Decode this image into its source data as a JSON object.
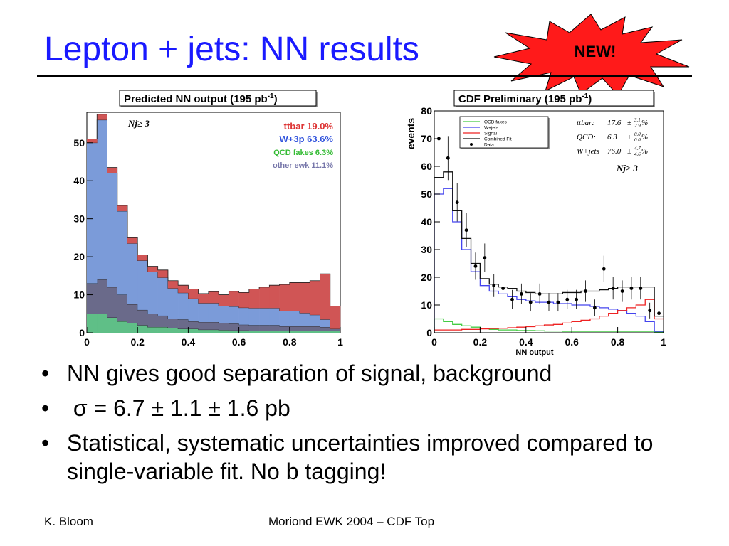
{
  "slide": {
    "title": "Lepton + jets: NN results",
    "badge": "NEW!",
    "bullet_marker": "•",
    "bullets": [
      "NN gives good separation of signal, background",
      " σ = 6.7 ± 1.1 ± 1.6 pb",
      "Statistical, systematic uncertainties improved compared to single-variable fit.  No b tagging!"
    ],
    "footer_left": "K. Bloom",
    "footer_center": "Moriond EWK 2004 – CDF Top",
    "colors": {
      "title": "#1a1aff",
      "badge_fill": "#ff1a1a",
      "rule": "#000000"
    }
  },
  "chart_data": [
    {
      "type": "area",
      "stacked": true,
      "title_main": "Predicted NN output (195 pb",
      "title_sup": "-1",
      "title_end": ")",
      "annotation": "Nj≥ 3",
      "x_ticks": [
        "0",
        "0.2",
        "0.4",
        "0.6",
        "0.8",
        "1"
      ],
      "y_ticks": [
        "0",
        "10",
        "20",
        "30",
        "40",
        "50"
      ],
      "xlim": [
        0,
        1
      ],
      "ylim": [
        0,
        58
      ],
      "bin_edges": [
        0,
        0.04,
        0.08,
        0.12,
        0.16,
        0.2,
        0.24,
        0.28,
        0.32,
        0.36,
        0.4,
        0.44,
        0.48,
        0.52,
        0.56,
        0.6,
        0.64,
        0.68,
        0.72,
        0.76,
        0.8,
        0.84,
        0.88,
        0.92,
        0.96,
        1.0
      ],
      "series": [
        {
          "name": "QCD fakes 6.3%",
          "color": "#5fbf87",
          "values": [
            5,
            5,
            4,
            3,
            2.5,
            2,
            1.5,
            1.5,
            1.2,
            1,
            1,
            0.8,
            0.8,
            0.7,
            0.6,
            0.6,
            0.5,
            0.5,
            0.5,
            0.5,
            0.5,
            0.5,
            0.5,
            0.5,
            0.5
          ]
        },
        {
          "name": "other ewk 11.1%",
          "color": "#6a6a8a",
          "values": [
            8,
            9,
            8,
            7,
            5,
            4,
            3.5,
            3,
            2.5,
            2.5,
            2,
            2,
            2,
            1.8,
            1.8,
            1.5,
            1.5,
            1.5,
            1.5,
            1.2,
            1.2,
            1.2,
            1.2,
            1,
            0.5
          ]
        },
        {
          "name": "W+3p 63.6%",
          "color": "#7b9bd9",
          "values": [
            37,
            42,
            30,
            22,
            16,
            13,
            11,
            10,
            8,
            7,
            6,
            5,
            5,
            4.5,
            4.5,
            4.5,
            4.5,
            4.5,
            4.5,
            4,
            4,
            3.5,
            3,
            2,
            0
          ]
        },
        {
          "name": "ttbar 19.0%",
          "color": "#d05555",
          "values": [
            1,
            1.5,
            1.5,
            1.5,
            1.5,
            1.5,
            1.5,
            2,
            2,
            2,
            2.5,
            2.5,
            3,
            3,
            4,
            4,
            5,
            5.5,
            6,
            7,
            7.5,
            8,
            9,
            12,
            6
          ]
        }
      ]
    },
    {
      "type": "line",
      "title_main": "CDF Preliminary (195 pb",
      "title_sup": "-1",
      "title_end": ")",
      "xlabel": "NN output",
      "ylabel": "events",
      "annotation": "Nj≥ 3",
      "x_ticks": [
        "0",
        "0.2",
        "0.4",
        "0.6",
        "0.8",
        "1"
      ],
      "y_ticks": [
        "0",
        "10",
        "20",
        "30",
        "40",
        "50",
        "60",
        "70",
        "80"
      ],
      "xlim": [
        0,
        1
      ],
      "ylim": [
        0,
        80
      ],
      "bin_edges": [
        0,
        0.04,
        0.08,
        0.12,
        0.16,
        0.2,
        0.24,
        0.28,
        0.32,
        0.36,
        0.4,
        0.44,
        0.48,
        0.52,
        0.56,
        0.6,
        0.64,
        0.68,
        0.72,
        0.76,
        0.8,
        0.84,
        0.88,
        0.92,
        0.96,
        1.0
      ],
      "fit_results": [
        {
          "label": "ttbar:",
          "value": "17.6",
          "pm": "±",
          "up": "3.1",
          "down": "2.9",
          "unit": "%"
        },
        {
          "label": "QCD:",
          "value": "6.3",
          "pm": "±",
          "up": "0.0",
          "down": "0.0",
          "unit": "%"
        },
        {
          "label": "W+jets",
          "value": "76.0",
          "pm": "±",
          "up": "4.7",
          "down": "4.6",
          "unit": "%"
        }
      ],
      "series": [
        {
          "name": "QCD fakes",
          "color": "#44cc44",
          "values": [
            5,
            4,
            3,
            2.5,
            2,
            1.5,
            1.2,
            1,
            1,
            0.8,
            0.8,
            0.7,
            0.6,
            0.6,
            0.5,
            0.5,
            0.5,
            0.5,
            0.5,
            0.5,
            0.5,
            0.5,
            0.5,
            0.5,
            0.3
          ]
        },
        {
          "name": "W+jets",
          "color": "#4444ee",
          "values": [
            50,
            52,
            40,
            30,
            22,
            17,
            15,
            14,
            13,
            12,
            11.5,
            11,
            11,
            10.5,
            10.5,
            10,
            10,
            9.5,
            9,
            8.5,
            8,
            7,
            6,
            4,
            0.5
          ]
        },
        {
          "name": "Signal",
          "color": "#ee2222",
          "values": [
            1,
            1,
            1,
            1.2,
            1.2,
            1.4,
            1.5,
            1.6,
            1.8,
            2,
            2.2,
            2.5,
            2.8,
            3,
            3.5,
            4,
            4.5,
            5,
            6,
            7,
            8,
            9,
            10,
            12,
            5
          ]
        },
        {
          "name": "Combined Fit",
          "color": "#111111",
          "values": [
            56,
            58,
            44,
            34,
            25,
            19.5,
            17.5,
            16.5,
            16,
            15,
            14.5,
            14,
            14,
            14,
            14.5,
            14.5,
            15,
            15,
            15.5,
            16,
            16.5,
            16.5,
            16.5,
            16.5,
            6
          ]
        }
      ],
      "data_points": {
        "name": "Data",
        "x": [
          0.02,
          0.06,
          0.1,
          0.14,
          0.18,
          0.22,
          0.26,
          0.3,
          0.34,
          0.38,
          0.42,
          0.46,
          0.5,
          0.54,
          0.58,
          0.62,
          0.66,
          0.7,
          0.74,
          0.78,
          0.82,
          0.86,
          0.9,
          0.94,
          0.98
        ],
        "y": [
          70,
          63,
          47,
          37,
          24,
          27,
          17,
          16,
          12,
          14,
          11,
          14,
          11,
          11,
          12,
          12,
          15,
          9,
          23,
          16,
          15,
          16,
          16,
          8,
          7
        ]
      }
    }
  ]
}
